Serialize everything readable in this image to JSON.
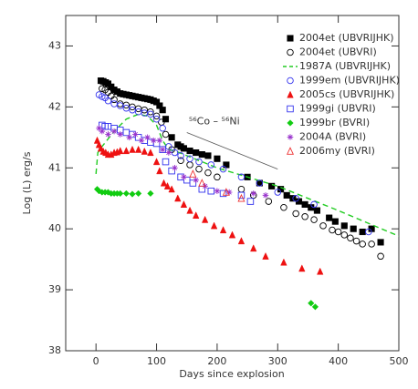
{
  "chart_data": {
    "type": "scatter",
    "xlabel": "Days since explosion",
    "ylabel": "Log (L) erg/s",
    "xlim": [
      -50,
      500
    ],
    "ylim": [
      38,
      43.5
    ],
    "xticks": [
      0,
      100,
      200,
      300,
      400,
      500
    ],
    "yticks": [
      38,
      39,
      40,
      41,
      42,
      43
    ],
    "legend": "upper right",
    "annotation": {
      "text": "⁵⁶Co – ⁵⁶Ni",
      "x": [
        150,
        300
      ],
      "y": [
        41.58,
        40.98
      ],
      "color": "#555555"
    },
    "series": [
      {
        "name": "2004et (UBVRIJHK)",
        "color": "#000000",
        "marker": "square-filled",
        "x": [
          8,
          12,
          16,
          20,
          25,
          30,
          35,
          40,
          45,
          50,
          55,
          60,
          65,
          70,
          75,
          80,
          85,
          90,
          95,
          100,
          105,
          110,
          115,
          125,
          135,
          140,
          145,
          155,
          165,
          175,
          185,
          200,
          215,
          250,
          270,
          290,
          305,
          315,
          325,
          335,
          345,
          355,
          365,
          385,
          395,
          410,
          425,
          440,
          455,
          470
        ],
        "values": [
          42.43,
          42.42,
          42.4,
          42.38,
          42.33,
          42.28,
          42.25,
          42.22,
          42.21,
          42.2,
          42.19,
          42.18,
          42.17,
          42.16,
          42.15,
          42.14,
          42.13,
          42.12,
          42.1,
          42.08,
          42.02,
          41.95,
          41.8,
          41.5,
          41.38,
          41.35,
          41.32,
          41.28,
          41.25,
          41.22,
          41.2,
          41.15,
          41.05,
          40.85,
          40.75,
          40.7,
          40.65,
          40.55,
          40.5,
          40.45,
          40.4,
          40.35,
          40.3,
          40.18,
          40.12,
          40.05,
          40.0,
          39.95,
          40.0,
          39.78
        ]
      },
      {
        "name": "2004et (UBVRI)",
        "color": "#000000",
        "marker": "circle-open",
        "x": [
          10,
          15,
          20,
          25,
          30,
          40,
          50,
          60,
          70,
          80,
          90,
          100,
          108,
          115,
          125,
          140,
          155,
          170,
          185,
          200,
          240,
          260,
          285,
          310,
          330,
          345,
          360,
          375,
          390,
          400,
          410,
          420,
          430,
          440,
          455,
          470
        ],
        "values": [
          42.3,
          42.28,
          42.24,
          42.18,
          42.12,
          42.05,
          42.03,
          42.0,
          41.97,
          41.95,
          41.92,
          41.85,
          41.75,
          41.55,
          41.3,
          41.12,
          41.05,
          40.98,
          40.92,
          40.85,
          40.65,
          40.55,
          40.45,
          40.35,
          40.25,
          40.2,
          40.15,
          40.05,
          39.98,
          39.95,
          39.9,
          39.85,
          39.8,
          39.75,
          39.75,
          39.55
        ]
      },
      {
        "name": "1987A (UBVRIJHK)",
        "color": "#22cc22",
        "marker": "dashed-line",
        "x": [
          0,
          3,
          10,
          30,
          50,
          70,
          85,
          100,
          110,
          120,
          130,
          150,
          200,
          300,
          400,
          500
        ],
        "values": [
          40.9,
          41.25,
          41.35,
          41.6,
          41.8,
          41.88,
          41.85,
          41.7,
          41.45,
          41.3,
          41.28,
          41.2,
          41.0,
          40.7,
          40.3,
          39.88
        ]
      },
      {
        "name": "1999em (UBVRIJHK)",
        "color": "#3333ee",
        "marker": "circle-open",
        "x": [
          5,
          10,
          15,
          20,
          30,
          40,
          50,
          60,
          70,
          80,
          90,
          100,
          110,
          120,
          130,
          140,
          155,
          170,
          190,
          210,
          240,
          270,
          300,
          330,
          360,
          450
        ],
        "values": [
          42.2,
          42.17,
          42.15,
          42.1,
          42.05,
          42.02,
          41.98,
          41.95,
          41.92,
          41.9,
          41.88,
          41.8,
          41.65,
          41.35,
          41.25,
          41.2,
          41.15,
          41.1,
          41.05,
          40.98,
          40.85,
          40.75,
          40.6,
          40.5,
          40.4,
          39.95
        ]
      },
      {
        "name": "2005cs (UBVRIJHK)",
        "color": "#ee1111",
        "marker": "triangle-filled",
        "x": [
          2,
          5,
          8,
          12,
          16,
          20,
          25,
          30,
          35,
          40,
          50,
          60,
          70,
          80,
          90,
          100,
          105,
          112,
          118,
          125,
          135,
          145,
          155,
          165,
          180,
          195,
          210,
          225,
          240,
          260,
          280,
          310,
          340,
          370
        ],
        "values": [
          41.45,
          41.38,
          41.32,
          41.27,
          41.25,
          41.22,
          41.22,
          41.25,
          41.26,
          41.28,
          41.28,
          41.3,
          41.3,
          41.27,
          41.25,
          41.1,
          40.95,
          40.75,
          40.7,
          40.65,
          40.5,
          40.4,
          40.3,
          40.22,
          40.15,
          40.05,
          39.98,
          39.9,
          39.8,
          39.68,
          39.55,
          39.45,
          39.35,
          39.3
        ]
      },
      {
        "name": "1999gi (UBVRI)",
        "color": "#3333ee",
        "marker": "square-open",
        "x": [
          10,
          15,
          20,
          30,
          40,
          50,
          60,
          70,
          80,
          90,
          100,
          110,
          115,
          125,
          140,
          150,
          160,
          175,
          190,
          210,
          240,
          255
        ],
        "values": [
          41.7,
          41.68,
          41.68,
          41.65,
          41.62,
          41.58,
          41.55,
          41.5,
          41.45,
          41.42,
          41.4,
          41.3,
          41.1,
          40.95,
          40.85,
          40.8,
          40.75,
          40.65,
          40.62,
          40.58,
          40.55,
          40.45
        ]
      },
      {
        "name": "1999br (BVRI)",
        "color": "#11cc11",
        "marker": "diamond-filled",
        "x": [
          2,
          5,
          10,
          15,
          20,
          25,
          30,
          35,
          40,
          50,
          60,
          70,
          90,
          355,
          362
        ],
        "values": [
          40.65,
          40.62,
          40.6,
          40.6,
          40.6,
          40.58,
          40.58,
          40.58,
          40.58,
          40.58,
          40.57,
          40.58,
          40.58,
          38.78,
          38.72
        ]
      },
      {
        "name": "2004A (BVRI)",
        "color": "#9933cc",
        "marker": "asterisk",
        "x": [
          5,
          10,
          20,
          30,
          40,
          55,
          65,
          75,
          85,
          95,
          105,
          110,
          120,
          130,
          145,
          165,
          180,
          200,
          220,
          260,
          280
        ],
        "values": [
          41.65,
          41.6,
          41.55,
          41.6,
          41.55,
          41.5,
          41.55,
          41.45,
          41.5,
          41.45,
          41.45,
          41.3,
          41.25,
          41.0,
          40.85,
          40.8,
          40.7,
          40.62,
          40.6,
          40.58,
          40.55
        ]
      },
      {
        "name": "2006my (BVRI)",
        "color": "#ee3333",
        "marker": "triangle-open",
        "x": [
          160,
          175,
          215,
          240
        ],
        "values": [
          40.9,
          40.75,
          40.6,
          40.5
        ]
      }
    ]
  }
}
